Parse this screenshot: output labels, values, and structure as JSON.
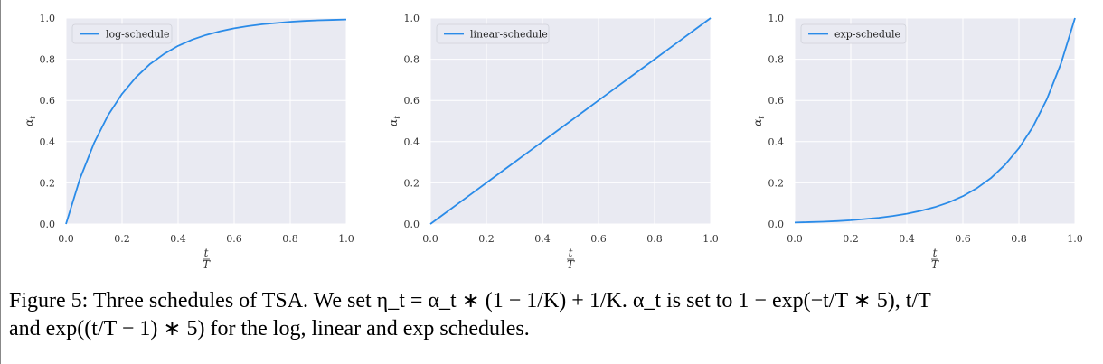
{
  "chart_data": [
    {
      "type": "line",
      "function": "1 - exp(-(t/T) * 5)",
      "x": [
        0.0,
        0.05,
        0.1,
        0.15,
        0.2,
        0.25,
        0.3,
        0.35,
        0.4,
        0.45,
        0.5,
        0.55,
        0.6,
        0.65,
        0.7,
        0.75,
        0.8,
        0.85,
        0.9,
        0.95,
        1.0
      ],
      "series": [
        {
          "name": "log-schedule",
          "values": [
            0.0,
            0.221,
            0.393,
            0.528,
            0.632,
            0.713,
            0.777,
            0.826,
            0.865,
            0.895,
            0.918,
            0.936,
            0.95,
            0.961,
            0.97,
            0.976,
            0.982,
            0.986,
            0.989,
            0.991,
            0.993
          ]
        }
      ],
      "xlabel": "t/T",
      "ylabel": "α_t",
      "xlim": [
        0.0,
        1.0
      ],
      "ylim": [
        0.0,
        1.0
      ],
      "xticks": [
        "0.0",
        "0.2",
        "0.4",
        "0.6",
        "0.8",
        "1.0"
      ],
      "yticks": [
        "0.0",
        "0.2",
        "0.4",
        "0.6",
        "0.8",
        "1.0"
      ],
      "grid": true,
      "legend_position": "top-left"
    },
    {
      "type": "line",
      "function": "t/T",
      "x": [
        0.0,
        0.05,
        0.1,
        0.15,
        0.2,
        0.25,
        0.3,
        0.35,
        0.4,
        0.45,
        0.5,
        0.55,
        0.6,
        0.65,
        0.7,
        0.75,
        0.8,
        0.85,
        0.9,
        0.95,
        1.0
      ],
      "series": [
        {
          "name": "linear-schedule",
          "values": [
            0.0,
            0.05,
            0.1,
            0.15,
            0.2,
            0.25,
            0.3,
            0.35,
            0.4,
            0.45,
            0.5,
            0.55,
            0.6,
            0.65,
            0.7,
            0.75,
            0.8,
            0.85,
            0.9,
            0.95,
            1.0
          ]
        }
      ],
      "xlabel": "t/T",
      "ylabel": "α_t",
      "xlim": [
        0.0,
        1.0
      ],
      "ylim": [
        0.0,
        1.0
      ],
      "xticks": [
        "0.0",
        "0.2",
        "0.4",
        "0.6",
        "0.8",
        "1.0"
      ],
      "yticks": [
        "0.0",
        "0.2",
        "0.4",
        "0.6",
        "0.8",
        "1.0"
      ],
      "grid": true,
      "legend_position": "top-left"
    },
    {
      "type": "line",
      "function": "exp((t/T - 1) * 5)",
      "x": [
        0.0,
        0.05,
        0.1,
        0.15,
        0.2,
        0.25,
        0.3,
        0.35,
        0.4,
        0.45,
        0.5,
        0.55,
        0.6,
        0.65,
        0.7,
        0.75,
        0.8,
        0.85,
        0.9,
        0.95,
        1.0
      ],
      "series": [
        {
          "name": "exp-schedule",
          "values": [
            0.007,
            0.009,
            0.011,
            0.014,
            0.018,
            0.024,
            0.03,
            0.039,
            0.05,
            0.064,
            0.082,
            0.105,
            0.135,
            0.174,
            0.223,
            0.287,
            0.368,
            0.472,
            0.607,
            0.779,
            1.0
          ]
        }
      ],
      "xlabel": "t/T",
      "ylabel": "α_t",
      "xlim": [
        0.0,
        1.0
      ],
      "ylim": [
        0.0,
        1.0
      ],
      "xticks": [
        "0.0",
        "0.2",
        "0.4",
        "0.6",
        "0.8",
        "1.0"
      ],
      "yticks": [
        "0.0",
        "0.2",
        "0.4",
        "0.6",
        "0.8",
        "1.0"
      ],
      "grid": true,
      "legend_position": "top-left"
    }
  ],
  "colors": {
    "line": "#2a8be8",
    "plot_background": "#e9eaf2",
    "grid": "#ffffff"
  },
  "caption": {
    "line1": "Figure 5: Three schedules of TSA. We set η_t = α_t ∗ (1 − 1/K) + 1/K. α_t is set to 1 − exp(−t/T ∗ 5), t/T",
    "line2": "and exp((t/T − 1) ∗ 5) for the log, linear and exp schedules."
  }
}
